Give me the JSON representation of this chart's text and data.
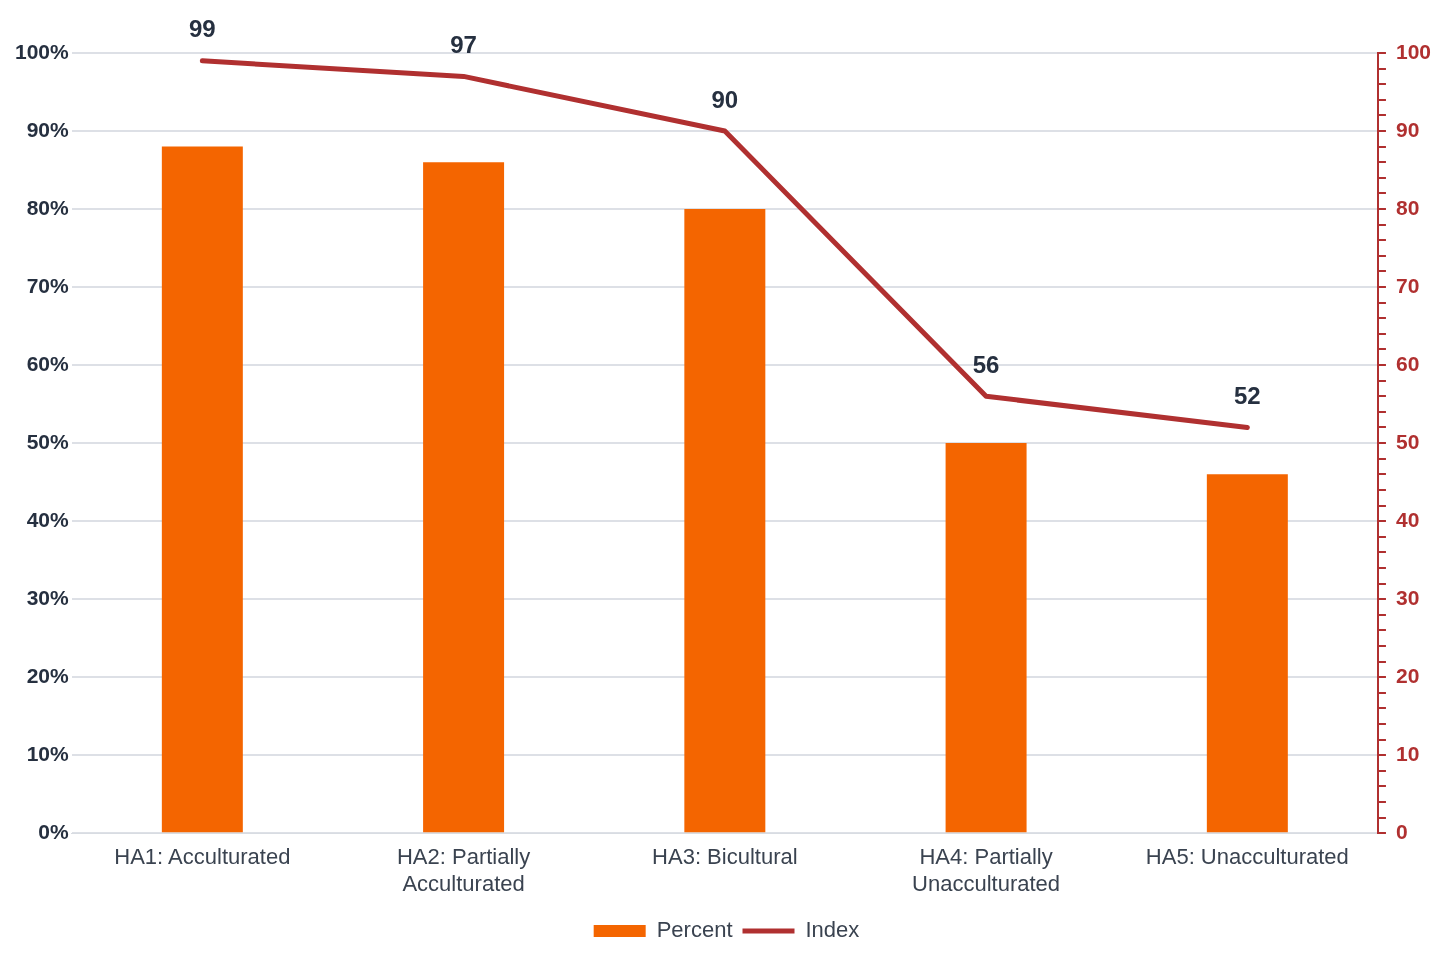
{
  "chart_data": {
    "type": "bar",
    "categories": [
      "HA1: Acculturated",
      "HA2: Partially Acculturated",
      "HA3: Bicultural",
      "HA4: Partially Unacculturated",
      "HA5: Unacculturated"
    ],
    "series": [
      {
        "name": "Percent",
        "color": "#f46500",
        "values": [
          88,
          86,
          80,
          50,
          46
        ]
      },
      {
        "name": "Index",
        "type": "line",
        "axis": "y2",
        "color": "#b03030",
        "values": [
          99,
          97,
          90,
          56,
          52
        ],
        "value_labels": [
          "99",
          "97",
          "90",
          "56",
          "52"
        ]
      }
    ],
    "ylim": [
      0,
      100
    ],
    "yticks": [
      {
        "value": 0,
        "label": "0%"
      },
      {
        "value": 10,
        "label": "10%"
      },
      {
        "value": 20,
        "label": "20%"
      },
      {
        "value": 30,
        "label": "30%"
      },
      {
        "value": 40,
        "label": "40%"
      },
      {
        "value": 50,
        "label": "50%"
      },
      {
        "value": 60,
        "label": "60%"
      },
      {
        "value": 70,
        "label": "70%"
      },
      {
        "value": 80,
        "label": "80%"
      },
      {
        "value": 90,
        "label": "90%"
      },
      {
        "value": 100,
        "label": "100%"
      }
    ],
    "y2lim": [
      0,
      100
    ],
    "y2ticks": [
      0,
      {
        "value": 2,
        "label": null
      },
      {
        "value": 4,
        "label": null
      },
      {
        "value": 6,
        "label": null
      },
      {
        "value": 8,
        "label": null
      },
      10,
      {
        "value": 12,
        "label": null
      },
      {
        "value": 14,
        "label": null
      },
      {
        "value": 16,
        "label": null
      },
      {
        "value": 18,
        "label": null
      },
      20,
      {
        "value": 22,
        "label": null
      },
      {
        "value": 24,
        "label": null
      },
      {
        "value": 26,
        "label": null
      },
      {
        "value": 28,
        "label": null
      },
      30,
      {
        "value": 32,
        "label": null
      },
      {
        "value": 34,
        "label": null
      },
      {
        "value": 36,
        "label": null
      },
      {
        "value": 38,
        "label": null
      },
      40,
      {
        "value": 42,
        "label": null
      },
      {
        "value": 44,
        "label": null
      },
      {
        "value": 46,
        "label": null
      },
      {
        "value": 48,
        "label": null
      },
      50,
      {
        "value": 52,
        "label": null
      },
      {
        "value": 54,
        "label": null
      },
      {
        "value": 56,
        "label": null
      },
      {
        "value": 58,
        "label": null
      },
      60,
      {
        "value": 62,
        "label": null
      },
      {
        "value": 64,
        "label": null
      },
      {
        "value": 66,
        "label": null
      },
      {
        "value": 68,
        "label": null
      },
      70,
      {
        "value": 72,
        "label": null
      },
      {
        "value": 74,
        "label": null
      },
      {
        "value": 76,
        "label": null
      },
      {
        "value": 78,
        "label": null
      },
      80,
      {
        "value": 82,
        "label": null
      },
      {
        "value": 84,
        "label": null
      },
      {
        "value": 86,
        "label": null
      },
      {
        "value": 88,
        "label": null
      },
      90,
      {
        "value": 92,
        "label": null
      },
      {
        "value": 94,
        "label": null
      },
      {
        "value": 96,
        "label": null
      },
      {
        "value": 98,
        "label": null
      },
      100
    ],
    "grid": "y",
    "legend": "bottom"
  }
}
